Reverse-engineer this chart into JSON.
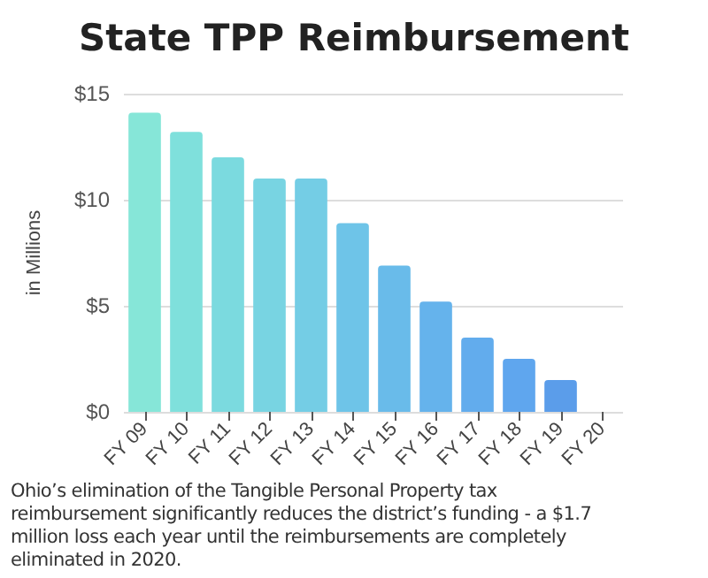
{
  "chart_data": {
    "type": "bar",
    "title": "State TPP Reimbursement",
    "ylabel": "in Millions",
    "categories": [
      "FY 09",
      "FY 10",
      "FY 11",
      "FY 12",
      "FY 13",
      "FY 14",
      "FY 15",
      "FY 16",
      "FY 17",
      "FY 18",
      "FY 19",
      "FY 20"
    ],
    "values": [
      14.1,
      13.2,
      12.0,
      11.0,
      11.0,
      8.9,
      6.9,
      5.2,
      3.5,
      2.5,
      1.5,
      0
    ],
    "colors": [
      "#86e6d8",
      "#7fe0dc",
      "#7bdadf",
      "#78d4e2",
      "#74cde5",
      "#6ec4e8",
      "#69bbea",
      "#65b3ec",
      "#62aced",
      "#5fa6ee",
      "#5b9dea",
      "#5b9dea"
    ],
    "ylim": [
      0,
      15
    ],
    "yticks": [
      {
        "value": 0,
        "label": "$0"
      },
      {
        "value": 5,
        "label": "$5"
      },
      {
        "value": 10,
        "label": "$10"
      },
      {
        "value": 15,
        "label": "$15"
      }
    ],
    "grid": "y",
    "annotations": [
      "Ohio’s elimination of the Tangible Personal Property tax reimbursement significantly reduces the district’s funding - a $1.7 million loss each year until the reimbursements are completely eliminated in 2020."
    ]
  }
}
